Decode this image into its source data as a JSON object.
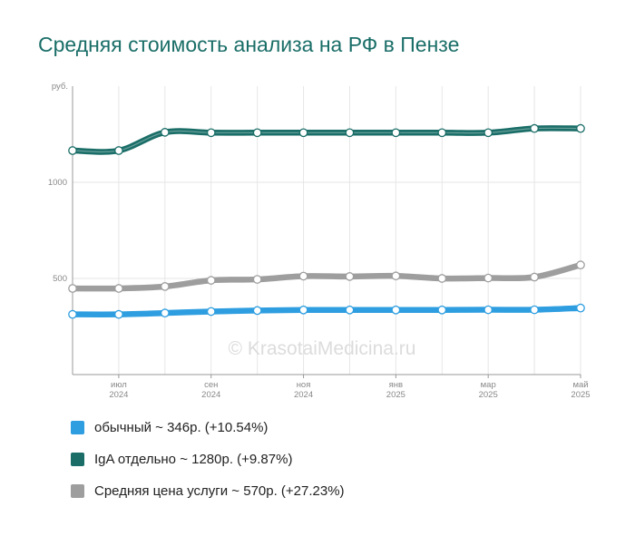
{
  "chart_data": {
    "type": "line",
    "title": "Средняя стоимость анализа на РФ в Пензе",
    "ylabel": "руб.",
    "ylim": [
      0,
      1500
    ],
    "yticks": [
      500,
      1000
    ],
    "x_ticks": [
      {
        "month": "июл",
        "year": "2024"
      },
      {
        "month": "сен",
        "year": "2024"
      },
      {
        "month": "ноя",
        "year": "2024"
      },
      {
        "month": "янв",
        "year": "2025"
      },
      {
        "month": "мар",
        "year": "2025"
      },
      {
        "month": "май",
        "year": "2025"
      }
    ],
    "x": [
      "2024-06",
      "2024-07",
      "2024-08",
      "2024-09",
      "2024-10",
      "2024-11",
      "2024-12",
      "2025-01",
      "2025-02",
      "2025-03",
      "2025-04",
      "2025-05"
    ],
    "watermark": "© KrasotaiMedicina.ru",
    "grid": true,
    "legend_position": "bottom",
    "series": [
      {
        "name": "IgA отдельно",
        "color": "#1b6e68",
        "legend": "IgA отдельно ~ 1280р. (+9.87%)",
        "values": [
          1165,
          1165,
          1260,
          1258,
          1258,
          1258,
          1258,
          1258,
          1258,
          1258,
          1280,
          1280
        ]
      },
      {
        "name": "Средняя цена услуги",
        "color": "#9e9e9e",
        "legend": "Средняя цена услуги ~ 570р. (+27.23%)",
        "values": [
          448,
          448,
          458,
          490,
          495,
          512,
          510,
          513,
          500,
          502,
          507,
          570
        ]
      },
      {
        "name": "обычный",
        "color": "#2e9ee0",
        "legend": "обычный ~ 346р. (+10.54%)",
        "values": [
          313,
          313,
          320,
          328,
          333,
          336,
          336,
          336,
          336,
          337,
          337,
          346
        ]
      }
    ]
  }
}
